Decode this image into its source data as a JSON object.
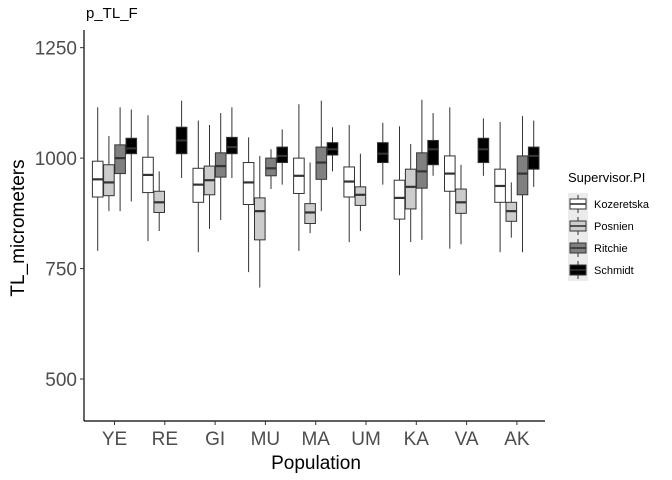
{
  "chart_data": {
    "type": "boxplot",
    "title": "p_TL_F",
    "xlabel": "Population",
    "ylabel": "TL_micrometers",
    "ylim": [
      405,
      1290
    ],
    "yticks": [
      500,
      750,
      1000,
      1250
    ],
    "grid": false,
    "legend": {
      "title": "Supervisor.PI",
      "placement": "right"
    },
    "categories": [
      "YE",
      "RE",
      "GI",
      "MU",
      "MA",
      "UM",
      "KA",
      "VA",
      "AK"
    ],
    "series": [
      {
        "name": "Kozeretska",
        "color": "#ffffff",
        "boxes": [
          {
            "min": 790,
            "q1": 912,
            "median": 952,
            "q3": 993,
            "max": 1115
          },
          {
            "min": 812,
            "q1": 922,
            "median": 962,
            "q3": 1002,
            "max": 1097
          },
          {
            "min": 787,
            "q1": 900,
            "median": 940,
            "q3": 977,
            "max": 1085
          },
          {
            "min": 742,
            "q1": 895,
            "median": 945,
            "q3": 990,
            "max": 1047
          },
          {
            "min": 790,
            "q1": 920,
            "median": 960,
            "q3": 1000,
            "max": 1122
          },
          {
            "min": 810,
            "q1": 912,
            "median": 947,
            "q3": 980,
            "max": 1075
          },
          {
            "min": 735,
            "q1": 862,
            "median": 910,
            "q3": 950,
            "max": 1072
          },
          {
            "min": 795,
            "q1": 925,
            "median": 965,
            "q3": 1005,
            "max": 1115
          },
          {
            "min": 787,
            "q1": 900,
            "median": 937,
            "q3": 975,
            "max": 1082
          }
        ]
      },
      {
        "name": "Posnien",
        "color": "#cccccc",
        "boxes": [
          {
            "min": 880,
            "q1": 915,
            "median": 945,
            "q3": 985,
            "max": 1050
          },
          {
            "min": 835,
            "q1": 877,
            "median": 900,
            "q3": 925,
            "max": 970
          },
          {
            "min": 840,
            "q1": 917,
            "median": 950,
            "q3": 982,
            "max": 1075
          },
          {
            "min": 707,
            "q1": 815,
            "median": 880,
            "q3": 910,
            "max": 1005
          },
          {
            "min": 830,
            "q1": 852,
            "median": 877,
            "q3": 897,
            "max": 990
          },
          {
            "min": 835,
            "q1": 893,
            "median": 917,
            "q3": 935,
            "max": 1010
          },
          {
            "min": 810,
            "q1": 885,
            "median": 935,
            "q3": 975,
            "max": 1032
          },
          {
            "min": 805,
            "q1": 875,
            "median": 900,
            "q3": 930,
            "max": 985
          },
          {
            "min": 820,
            "q1": 857,
            "median": 880,
            "q3": 900,
            "max": 945
          }
        ]
      },
      {
        "name": "Ritchie",
        "color": "#808080",
        "boxes": [
          {
            "min": 880,
            "q1": 965,
            "median": 1000,
            "q3": 1030,
            "max": 1115
          },
          null,
          {
            "min": 860,
            "q1": 957,
            "median": 982,
            "q3": 1012,
            "max": 1102
          },
          {
            "min": 930,
            "q1": 960,
            "median": 977,
            "q3": 1000,
            "max": 1020
          },
          {
            "min": 880,
            "q1": 952,
            "median": 990,
            "q3": 1025,
            "max": 1130
          },
          null,
          {
            "min": 815,
            "q1": 932,
            "median": 970,
            "q3": 1012,
            "max": 1132
          },
          null,
          {
            "min": 787,
            "q1": 917,
            "median": 965,
            "q3": 1005,
            "max": 1095
          }
        ]
      },
      {
        "name": "Schmidt",
        "color": "#000000",
        "boxes": [
          {
            "min": 902,
            "q1": 1010,
            "median": 1022,
            "q3": 1045,
            "max": 1110
          },
          {
            "min": 955,
            "q1": 1010,
            "median": 1040,
            "q3": 1070,
            "max": 1130
          },
          {
            "min": 955,
            "q1": 1010,
            "median": 1025,
            "q3": 1047,
            "max": 1115
          },
          {
            "min": 940,
            "q1": 990,
            "median": 1005,
            "q3": 1025,
            "max": 1065
          },
          {
            "min": 970,
            "q1": 1007,
            "median": 1020,
            "q3": 1035,
            "max": 1070
          },
          {
            "min": 940,
            "q1": 990,
            "median": 1010,
            "q3": 1035,
            "max": 1080
          },
          {
            "min": 960,
            "q1": 985,
            "median": 1020,
            "q3": 1040,
            "max": 1102
          },
          {
            "min": 960,
            "q1": 990,
            "median": 1020,
            "q3": 1045,
            "max": 1090
          },
          {
            "min": 935,
            "q1": 975,
            "median": 1005,
            "q3": 1025,
            "max": 1085
          }
        ]
      }
    ]
  }
}
